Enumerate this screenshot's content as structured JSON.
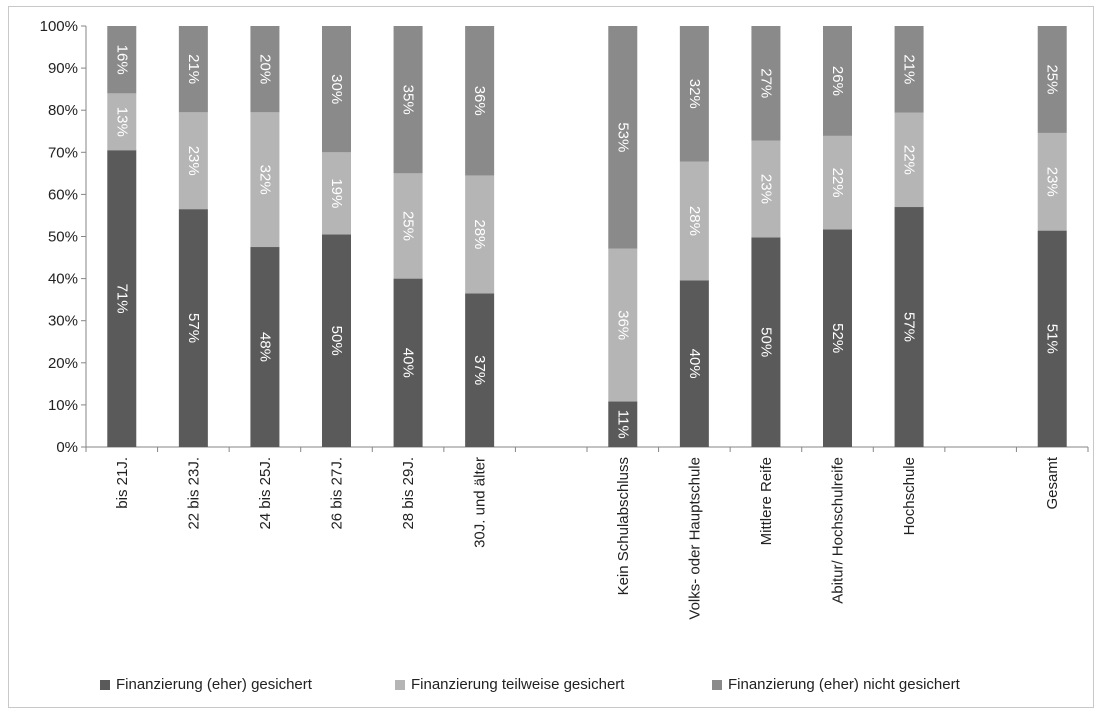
{
  "chart_data": {
    "type": "bar",
    "stacked": true,
    "orientation": "vertical",
    "ylim": [
      0,
      100
    ],
    "y_ticks": [
      "0%",
      "10%",
      "20%",
      "30%",
      "40%",
      "50%",
      "60%",
      "70%",
      "80%",
      "90%",
      "100%"
    ],
    "grid": false,
    "legend_position": "bottom",
    "categories": [
      "bis 21J.",
      "22 bis 23J.",
      "24 bis 25J.",
      "26 bis 27J.",
      "28 bis 29J.",
      "30J. und älter",
      "",
      "Kein Schulabschluss",
      "Volks- oder Hauptschule",
      "Mittlere Reife",
      "Abitur/ Hochschulreife",
      "Hochschule",
      "",
      "Gesamt"
    ],
    "series": [
      {
        "name": "Finanzierung (eher) gesichert",
        "color": "#5a5a5a",
        "values": [
          70.5,
          56.5,
          47.5,
          50.5,
          40,
          36.5,
          null,
          10.8,
          39.6,
          49.8,
          51.7,
          57,
          null,
          51.4
        ],
        "labels": [
          "71%",
          "57%",
          "48%",
          "50%",
          "40%",
          "37%",
          "",
          "11%",
          "40%",
          "50%",
          "52%",
          "57%",
          "",
          "51%"
        ]
      },
      {
        "name": "Finanzierung teilweise gesichert",
        "color": "#b5b5b5",
        "values": [
          13.5,
          23,
          32,
          19.5,
          25,
          28,
          null,
          36.3,
          28.2,
          23,
          22.2,
          22.4,
          null,
          23.2
        ],
        "labels": [
          "13%",
          "23%",
          "32%",
          "19%",
          "25%",
          "28%",
          "",
          "36%",
          "28%",
          "23%",
          "22%",
          "22%",
          "",
          "23%"
        ]
      },
      {
        "name": "Finanzierung (eher) nicht gesichert",
        "color": "#8a8a8a",
        "values": [
          16,
          20.5,
          20.5,
          30,
          35,
          35.5,
          null,
          52.9,
          32.2,
          27.2,
          26.1,
          20.6,
          null,
          25.4
        ],
        "labels": [
          "16%",
          "21%",
          "20%",
          "30%",
          "35%",
          "36%",
          "",
          "53%",
          "32%",
          "27%",
          "26%",
          "21%",
          "",
          "25%"
        ]
      }
    ]
  }
}
